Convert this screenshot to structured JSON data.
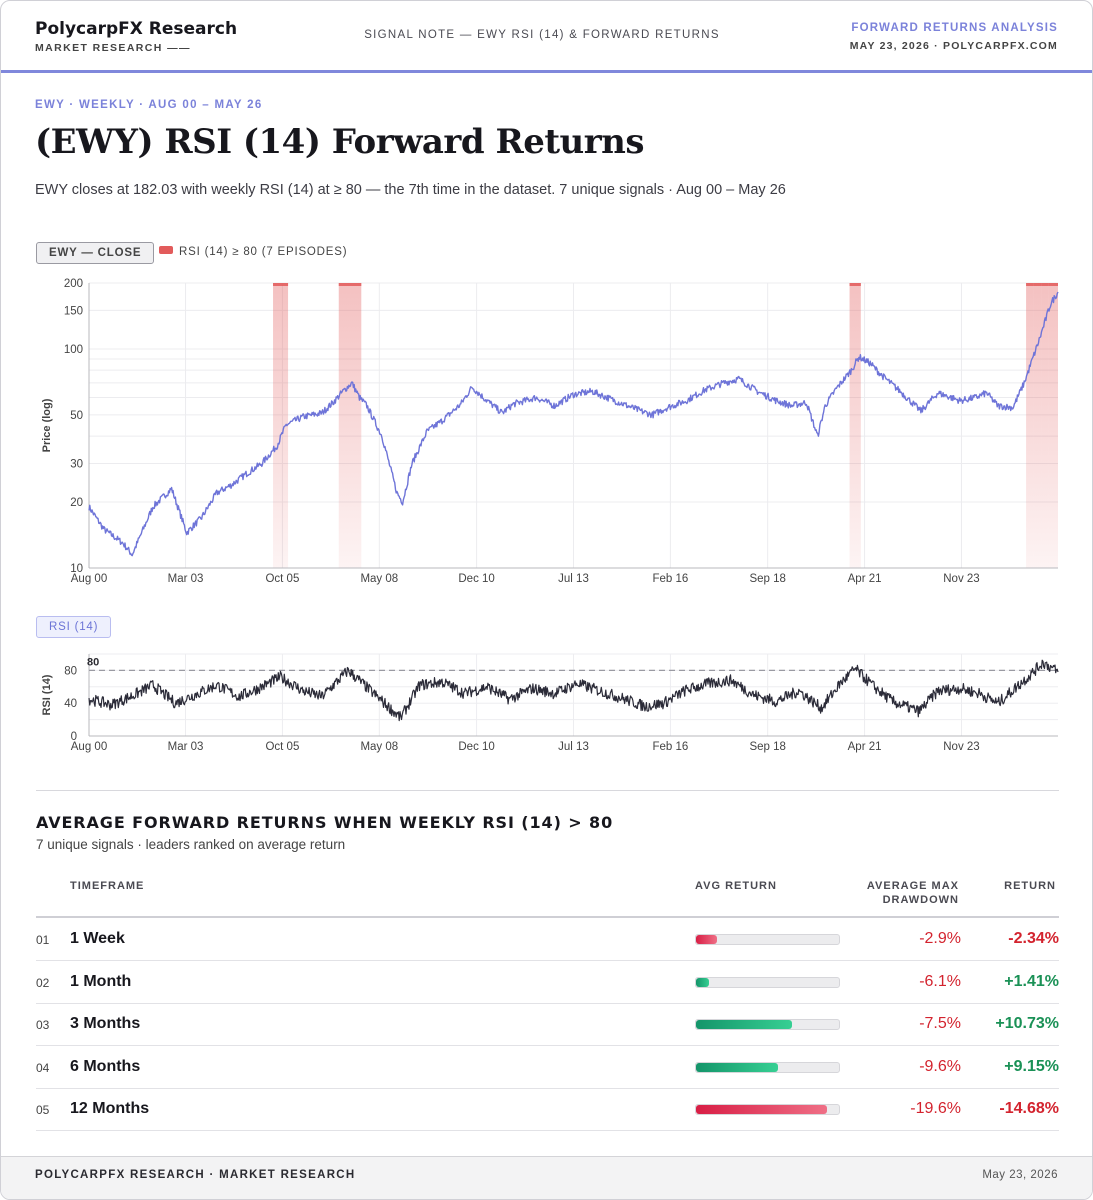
{
  "header": {
    "brand": "PolycarpFX Research",
    "brand_sub": "MARKET RESEARCH ——",
    "center": "SIGNAL NOTE — EWY RSI (14) & FORWARD RETURNS",
    "right_title": "FORWARD RETURNS ANALYSIS",
    "right_sub": "MAY 23, 2026 · POLYCARPFX.COM"
  },
  "kicker": "EWY · WEEKLY · AUG 00 – MAY 26",
  "title": "(EWY) RSI (14) Forward Returns",
  "subtitle": "EWY closes at 182.03 with weekly RSI (14) at ≥ 80 — the 7th time in the dataset. 7 unique signals · Aug 00 – May 26",
  "price_panel": {
    "pill": "EWY — CLOSE",
    "legend": "RSI (14) ≥ 80 (7 EPISODES)"
  },
  "rsi_panel": {
    "pill": "RSI (14)"
  },
  "colors": {
    "accent": "#7b82da",
    "price_line": "#6e74d8",
    "rsi_line": "#2b2b38",
    "episode": "#e25b5b",
    "negative": "#d3232e",
    "positive": "#1a9156"
  },
  "chart_data": [
    {
      "type": "line",
      "title": "",
      "xlabel": "",
      "ylabel": "Price (log)",
      "yscale": "log",
      "ylim": [
        10,
        200
      ],
      "y_ticks": [
        "10",
        "20",
        "30",
        "50",
        "100",
        "150",
        "200"
      ],
      "x_ticks": [
        "Aug 00",
        "Mar 03",
        "Oct 05",
        "May 08",
        "Dec 10",
        "Jul 13",
        "Feb 16",
        "Sep 18",
        "Apr 21",
        "Nov 23"
      ],
      "grid": true,
      "series": [
        {
          "x": [
            2000.6,
            2001.0,
            2001.5,
            2001.75,
            2002.3,
            2002.8,
            2003.2,
            2003.6,
            2004.0,
            2004.4,
            2004.8,
            2005.2,
            2005.6,
            2005.85,
            2006.3,
            2006.8,
            2007.1,
            2007.4,
            2007.6,
            2007.8,
            2008.0,
            2008.4,
            2008.8,
            2008.95,
            2009.2,
            2009.6,
            2010.0,
            2010.5,
            2010.8,
            2011.1,
            2011.6,
            2011.9,
            2012.5,
            2013.0,
            2013.5,
            2014.0,
            2014.6,
            2015.3,
            2015.6,
            2016.0,
            2016.5,
            2017.0,
            2017.5,
            2017.9,
            2018.4,
            2018.9,
            2019.3,
            2019.7,
            2020.0,
            2020.2,
            2020.5,
            2020.9,
            2021.1,
            2021.4,
            2021.7,
            2022.2,
            2022.75,
            2023.2,
            2023.8,
            2024.2,
            2024.5,
            2024.8,
            2025.2,
            2025.5,
            2025.9,
            2026.2,
            2026.4
          ],
          "values": [
            19,
            15,
            13,
            11.5,
            19,
            23,
            14.5,
            17,
            22,
            24,
            27,
            30,
            36,
            45,
            49,
            51,
            57,
            65,
            70,
            60,
            55,
            40,
            22,
            20,
            30,
            42,
            47,
            56,
            67,
            60,
            51,
            56,
            60,
            55,
            62,
            64,
            58,
            52,
            50,
            54,
            58,
            65,
            70,
            73,
            64,
            58,
            55,
            57,
            40,
            55,
            66,
            80,
            92,
            86,
            76,
            64,
            52,
            63,
            58,
            60,
            63,
            55,
            54,
            70,
            110,
            160,
            182
          ],
          "episodes": [
            {
              "start": 2005.5,
              "end": 2005.9
            },
            {
              "start": 2007.25,
              "end": 2007.85
            },
            {
              "start": 2020.85,
              "end": 2021.15
            },
            {
              "start": 2025.55,
              "end": 2025.75
            },
            {
              "start": 2025.75,
              "end": 2025.95
            },
            {
              "start": 2025.95,
              "end": 2026.15
            },
            {
              "start": 2026.15,
              "end": 2026.4
            }
          ]
        }
      ]
    },
    {
      "type": "line",
      "title": "",
      "xlabel": "",
      "ylabel": "RSI (14)",
      "ylim": [
        0,
        100
      ],
      "y_ticks": [
        "0",
        "40",
        "80"
      ],
      "threshold": 80,
      "threshold_label": "80",
      "x_ticks": [
        "Aug 00",
        "Mar 03",
        "Oct 05",
        "May 08",
        "Dec 10",
        "Jul 13",
        "Feb 16",
        "Sep 18",
        "Apr 21",
        "Nov 23"
      ],
      "series": [
        {
          "x": [
            2000.6,
            2001.2,
            2001.8,
            2002.3,
            2002.9,
            2003.4,
            2004.0,
            2004.6,
            2005.2,
            2005.7,
            2006.3,
            2006.8,
            2007.5,
            2008.1,
            2008.9,
            2009.4,
            2010.0,
            2010.6,
            2011.2,
            2011.8,
            2012.4,
            2013.0,
            2013.6,
            2014.2,
            2014.8,
            2015.4,
            2015.9,
            2016.5,
            2017.1,
            2017.7,
            2018.3,
            2018.9,
            2019.5,
            2020.1,
            2020.6,
            2021.0,
            2021.5,
            2022.0,
            2022.7,
            2023.2,
            2023.8,
            2024.3,
            2024.8,
            2025.3,
            2025.7,
            2026.0,
            2026.4
          ],
          "values": [
            45,
            38,
            50,
            62,
            40,
            50,
            62,
            48,
            60,
            72,
            55,
            48,
            80,
            55,
            22,
            62,
            66,
            52,
            60,
            45,
            58,
            52,
            64,
            55,
            46,
            36,
            40,
            56,
            64,
            68,
            50,
            42,
            55,
            34,
            64,
            82,
            60,
            42,
            30,
            55,
            58,
            52,
            40,
            60,
            76,
            90,
            78
          ]
        }
      ]
    }
  ],
  "section": {
    "title": "AVERAGE FORWARD RETURNS WHEN WEEKLY RSI (14) > 80",
    "subtitle": "7 unique signals · leaders ranked on average return"
  },
  "table": {
    "headers": {
      "timeframe": "TIMEFRAME",
      "avg_return": "AVG RETURN",
      "drawdown_1": "AVERAGE MAX",
      "drawdown_2": "DRAWDOWN",
      "return": "RETURN"
    },
    "rows": [
      {
        "num": "01",
        "timeframe": "1 Week",
        "drawdown": "-2.9%",
        "ret": "-2.34%",
        "value": -2.34
      },
      {
        "num": "02",
        "timeframe": "1 Month",
        "drawdown": "-6.1%",
        "ret": "+1.41%",
        "value": 1.41
      },
      {
        "num": "03",
        "timeframe": "3 Months",
        "drawdown": "-7.5%",
        "ret": "+10.73%",
        "value": 10.73
      },
      {
        "num": "04",
        "timeframe": "6 Months",
        "drawdown": "-9.6%",
        "ret": "+9.15%",
        "value": 9.15
      },
      {
        "num": "05",
        "timeframe": "12 Months",
        "drawdown": "-19.6%",
        "ret": "-14.68%",
        "value": -14.68
      }
    ]
  },
  "footer": {
    "left": "POLYCARPFX RESEARCH · MARKET RESEARCH",
    "right": "May 23, 2026"
  }
}
